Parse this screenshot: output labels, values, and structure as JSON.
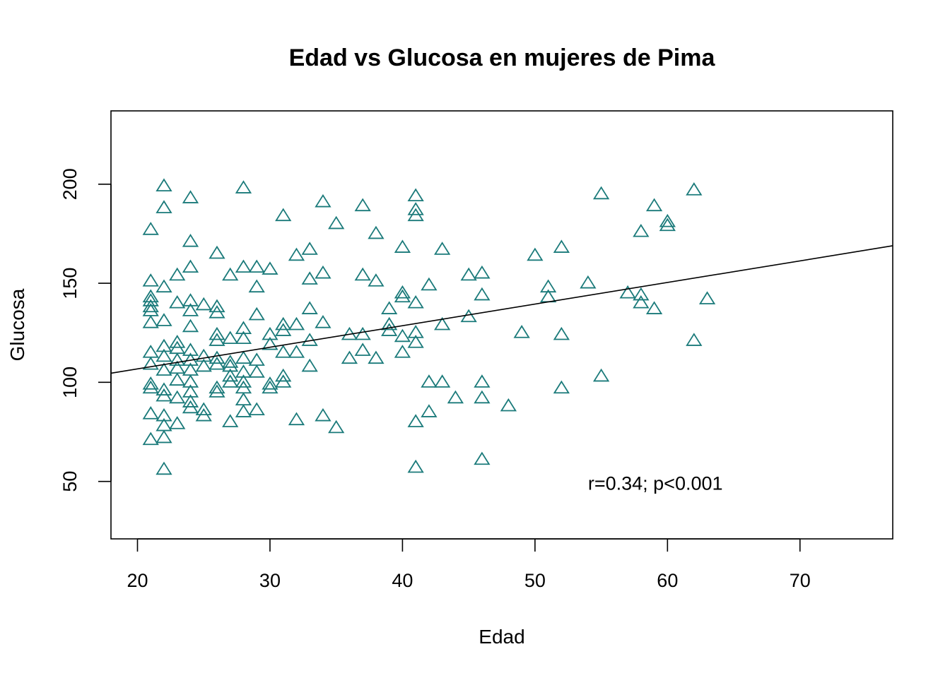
{
  "chart_data": {
    "type": "scatter",
    "title": "Edad vs Glucosa en mujeres de Pima",
    "xlabel": "Edad",
    "ylabel": "Glucosa",
    "xlim": [
      18,
      77
    ],
    "ylim": [
      21,
      237
    ],
    "xticks": [
      "20",
      "30",
      "40",
      "50",
      "60",
      "70"
    ],
    "yticks": [
      "50",
      "100",
      "150",
      "200"
    ],
    "grid": false,
    "marker": "triangle-open",
    "point_color": "#1a7a7a",
    "line_color": "#000000",
    "annotation": "r=0.34; p<0.001",
    "annotation_pos": {
      "x": 54,
      "y": 49
    },
    "regression": {
      "intercept": 85.0,
      "slope": 1.09
    },
    "points": [
      [
        22,
        199
      ],
      [
        28,
        198
      ],
      [
        24,
        193
      ],
      [
        22,
        188
      ],
      [
        21,
        177
      ],
      [
        24,
        171
      ],
      [
        26,
        165
      ],
      [
        23,
        154
      ],
      [
        27,
        154
      ],
      [
        24,
        158
      ],
      [
        28,
        158
      ],
      [
        29,
        158
      ],
      [
        30,
        157
      ],
      [
        22,
        148
      ],
      [
        21,
        151
      ],
      [
        21,
        143
      ],
      [
        21,
        141
      ],
      [
        21,
        138
      ],
      [
        21,
        136
      ],
      [
        24,
        141
      ],
      [
        24,
        136
      ],
      [
        23,
        140
      ],
      [
        25,
        139
      ],
      [
        26,
        138
      ],
      [
        26,
        135
      ],
      [
        21,
        130
      ],
      [
        22,
        131
      ],
      [
        24,
        128
      ],
      [
        26,
        124
      ],
      [
        26,
        121
      ],
      [
        27,
        122
      ],
      [
        28,
        127
      ],
      [
        28,
        122
      ],
      [
        29,
        134
      ],
      [
        29,
        148
      ],
      [
        30,
        124
      ],
      [
        30,
        119
      ],
      [
        21,
        115
      ],
      [
        21,
        109
      ],
      [
        21,
        99
      ],
      [
        21,
        97
      ],
      [
        21,
        84
      ],
      [
        21,
        71
      ],
      [
        22,
        118
      ],
      [
        22,
        113
      ],
      [
        22,
        106
      ],
      [
        22,
        96
      ],
      [
        22,
        93
      ],
      [
        22,
        83
      ],
      [
        22,
        78
      ],
      [
        22,
        72
      ],
      [
        22,
        56
      ],
      [
        23,
        120
      ],
      [
        23,
        117
      ],
      [
        23,
        111
      ],
      [
        23,
        107
      ],
      [
        23,
        101
      ],
      [
        23,
        92
      ],
      [
        23,
        79
      ],
      [
        24,
        116
      ],
      [
        24,
        111
      ],
      [
        24,
        106
      ],
      [
        24,
        100
      ],
      [
        24,
        95
      ],
      [
        24,
        90
      ],
      [
        24,
        87
      ],
      [
        25,
        113
      ],
      [
        25,
        108
      ],
      [
        25,
        86
      ],
      [
        25,
        83
      ],
      [
        26,
        112
      ],
      [
        26,
        109
      ],
      [
        26,
        97
      ],
      [
        26,
        95
      ],
      [
        27,
        110
      ],
      [
        27,
        108
      ],
      [
        27,
        103
      ],
      [
        27,
        100
      ],
      [
        27,
        80
      ],
      [
        28,
        112
      ],
      [
        28,
        105
      ],
      [
        28,
        100
      ],
      [
        28,
        97
      ],
      [
        28,
        91
      ],
      [
        28,
        85
      ],
      [
        29,
        111
      ],
      [
        29,
        105
      ],
      [
        29,
        86
      ],
      [
        30,
        99
      ],
      [
        30,
        97
      ],
      [
        31,
        184
      ],
      [
        31,
        129
      ],
      [
        31,
        126
      ],
      [
        31,
        115
      ],
      [
        31,
        103
      ],
      [
        31,
        100
      ],
      [
        32,
        164
      ],
      [
        32,
        129
      ],
      [
        32,
        115
      ],
      [
        32,
        81
      ],
      [
        33,
        167
      ],
      [
        33,
        152
      ],
      [
        33,
        137
      ],
      [
        33,
        121
      ],
      [
        33,
        108
      ],
      [
        34,
        191
      ],
      [
        34,
        155
      ],
      [
        34,
        130
      ],
      [
        34,
        83
      ],
      [
        35,
        180
      ],
      [
        35,
        77
      ],
      [
        36,
        124
      ],
      [
        36,
        112
      ],
      [
        37,
        189
      ],
      [
        37,
        154
      ],
      [
        37,
        124
      ],
      [
        37,
        116
      ],
      [
        38,
        175
      ],
      [
        38,
        151
      ],
      [
        38,
        112
      ],
      [
        39,
        137
      ],
      [
        39,
        129
      ],
      [
        39,
        126
      ],
      [
        40,
        168
      ],
      [
        40,
        145
      ],
      [
        40,
        143
      ],
      [
        40,
        123
      ],
      [
        40,
        115
      ],
      [
        41,
        194
      ],
      [
        41,
        187
      ],
      [
        41,
        184
      ],
      [
        41,
        140
      ],
      [
        41,
        125
      ],
      [
        41,
        120
      ],
      [
        41,
        80
      ],
      [
        41,
        57
      ],
      [
        42,
        149
      ],
      [
        42,
        100
      ],
      [
        42,
        85
      ],
      [
        43,
        167
      ],
      [
        43,
        129
      ],
      [
        43,
        100
      ],
      [
        44,
        92
      ],
      [
        45,
        154
      ],
      [
        45,
        133
      ],
      [
        46,
        155
      ],
      [
        46,
        144
      ],
      [
        46,
        100
      ],
      [
        46,
        92
      ],
      [
        46,
        61
      ],
      [
        48,
        88
      ],
      [
        49,
        125
      ],
      [
        50,
        164
      ],
      [
        51,
        148
      ],
      [
        51,
        143
      ],
      [
        52,
        168
      ],
      [
        52,
        124
      ],
      [
        52,
        97
      ],
      [
        54,
        150
      ],
      [
        55,
        195
      ],
      [
        55,
        103
      ],
      [
        57,
        145
      ],
      [
        58,
        176
      ],
      [
        58,
        144
      ],
      [
        58,
        140
      ],
      [
        59,
        189
      ],
      [
        59,
        137
      ],
      [
        60,
        181
      ],
      [
        60,
        179
      ],
      [
        62,
        197
      ],
      [
        62,
        121
      ],
      [
        63,
        142
      ]
    ]
  }
}
